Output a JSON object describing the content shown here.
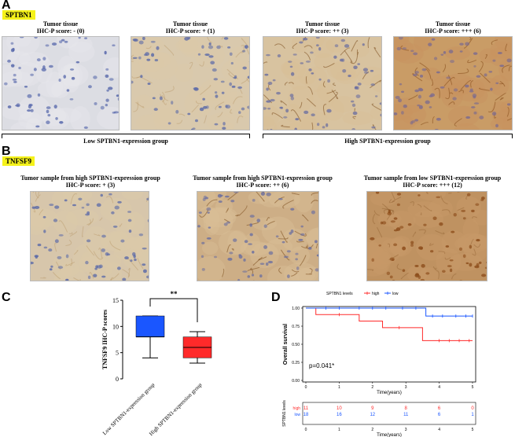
{
  "panels": {
    "a": "A",
    "b": "B",
    "c": "C",
    "d": "D"
  },
  "panel_a": {
    "tag": "SPTBN1",
    "images": [
      {
        "line1": "Tumor tissue",
        "line2": "IHC-P score: - (0)",
        "stain": "none"
      },
      {
        "line1": "Tumor tissue",
        "line2": "IHC-P score: + (1)",
        "stain": "weak"
      },
      {
        "line1": "Tumor tissue",
        "line2": "IHC-P score: ++ (3)",
        "stain": "moderate"
      },
      {
        "line1": "Tumor tissue",
        "line2": "IHC-P score: +++ (6)",
        "stain": "strong"
      }
    ],
    "group_low": "Low SPTBN1-expression group",
    "group_high": "High SPTBN1-expression group"
  },
  "panel_b": {
    "tag": "TNFSF9",
    "images": [
      {
        "line1": "Tumor sample from high SPTBN1-expression group",
        "line2": "IHC-P score: + (3)"
      },
      {
        "line1": "Tumor sample from high SPTBN1-expression group",
        "line2": "IHC-P score: ++ (6)"
      },
      {
        "line1": "Tumor sample from low SPTBN1-expression group",
        "line2": "IHC-P score: +++ (12)"
      }
    ]
  },
  "colors": {
    "blue": "#1a56ff",
    "red": "#ff2a2a",
    "highlight": "#f5f21a",
    "tissue_bg": "#e8e2d8"
  },
  "chart_data": [
    {
      "type": "boxplot",
      "ylabel": "TNFSF9 IHC-P scores",
      "ylim": [
        0,
        15
      ],
      "yticks": [
        0,
        5,
        10,
        15
      ],
      "significance": "**",
      "categories": [
        "Low SPTBN1-expression group",
        "High SPTBN1-expression group"
      ],
      "series": [
        {
          "name": "Low SPTBN1-expression group",
          "color": "#1a56ff",
          "min": 4,
          "q1": 8,
          "median": 8,
          "q3": 12,
          "max": 12
        },
        {
          "name": "High SPTBN1-expression group",
          "color": "#ff2a2a",
          "min": 3,
          "q1": 4,
          "median": 6,
          "q3": 8,
          "max": 9
        }
      ]
    },
    {
      "type": "line",
      "title": "SPTBN1 levels",
      "legend": [
        "high",
        "low"
      ],
      "xlabel": "Time(years)",
      "ylabel": "Overall survival",
      "xlim": [
        0,
        5
      ],
      "ylim": [
        0,
        1
      ],
      "xticks": [
        0,
        1,
        2,
        3,
        4,
        5
      ],
      "yticks": [
        "0.00",
        "0.25",
        "0.50",
        "0.75",
        "1.00"
      ],
      "annotation": "p=0.041*",
      "series": [
        {
          "name": "high",
          "color": "#ff2a2a",
          "steps": [
            [
              0,
              1.0
            ],
            [
              0.3,
              0.91
            ],
            [
              1.6,
              0.82
            ],
            [
              2.3,
              0.73
            ],
            [
              3.5,
              0.55
            ],
            [
              5,
              0.55
            ]
          ],
          "censors": [
            [
              1.0,
              0.91
            ],
            [
              2.8,
              0.73
            ],
            [
              4.0,
              0.55
            ],
            [
              4.3,
              0.55
            ],
            [
              4.6,
              0.55
            ],
            [
              4.9,
              0.55
            ]
          ]
        },
        {
          "name": "low",
          "color": "#1a56ff",
          "steps": [
            [
              0,
              1.0
            ],
            [
              3.6,
              0.89
            ],
            [
              5,
              0.89
            ]
          ],
          "censors": [
            [
              0.6,
              1.0
            ],
            [
              1.0,
              1.0
            ],
            [
              1.6,
              1.0
            ],
            [
              2.0,
              1.0
            ],
            [
              2.4,
              1.0
            ],
            [
              2.9,
              1.0
            ],
            [
              3.3,
              1.0
            ],
            [
              3.8,
              0.89
            ],
            [
              4.1,
              0.89
            ],
            [
              4.5,
              0.89
            ],
            [
              4.8,
              0.89
            ],
            [
              5.0,
              0.89
            ]
          ]
        }
      ],
      "risk_table": {
        "ylabel": "SPTBN1 levels",
        "xlabel": "Time(years)",
        "rows": [
          {
            "name": "high",
            "color": "#ff2a2a",
            "values": [
              "11",
              "10",
              "9",
              "8",
              "6",
              "0"
            ]
          },
          {
            "name": "low",
            "color": "#1a56ff",
            "values": [
              "18",
              "16",
              "12",
              "11",
              "6",
              "1"
            ]
          }
        ]
      }
    }
  ]
}
